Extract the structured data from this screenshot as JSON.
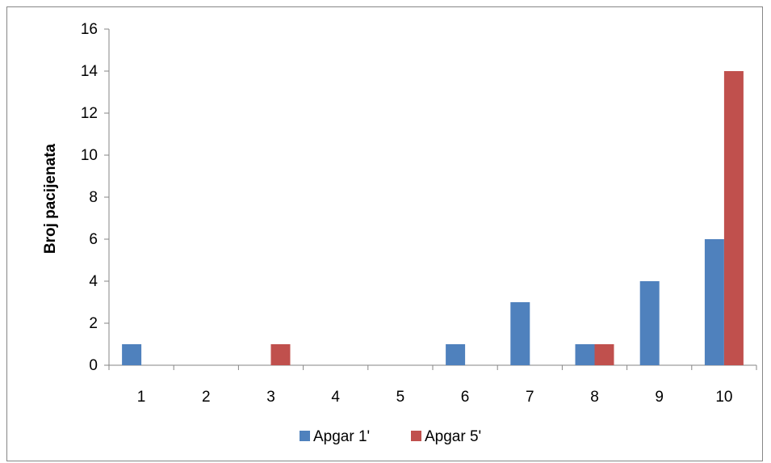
{
  "chart_data": {
    "type": "bar",
    "categories": [
      "1",
      "2",
      "3",
      "4",
      "5",
      "6",
      "7",
      "8",
      "9",
      "10"
    ],
    "series": [
      {
        "name": "Apgar 1'",
        "color": "#4F81BD",
        "values": [
          1,
          0,
          0,
          0,
          0,
          1,
          3,
          1,
          4,
          6
        ]
      },
      {
        "name": "Apgar 5'",
        "color": "#C0504D",
        "values": [
          0,
          0,
          1,
          0,
          0,
          0,
          0,
          1,
          0,
          14
        ]
      }
    ],
    "title": "",
    "xlabel": "",
    "ylabel": "Broj pacijenata",
    "ylim": [
      0,
      16
    ],
    "yticks": [
      0,
      2,
      4,
      6,
      8,
      10,
      12,
      14,
      16
    ],
    "grid": false,
    "legend_position": "bottom"
  }
}
